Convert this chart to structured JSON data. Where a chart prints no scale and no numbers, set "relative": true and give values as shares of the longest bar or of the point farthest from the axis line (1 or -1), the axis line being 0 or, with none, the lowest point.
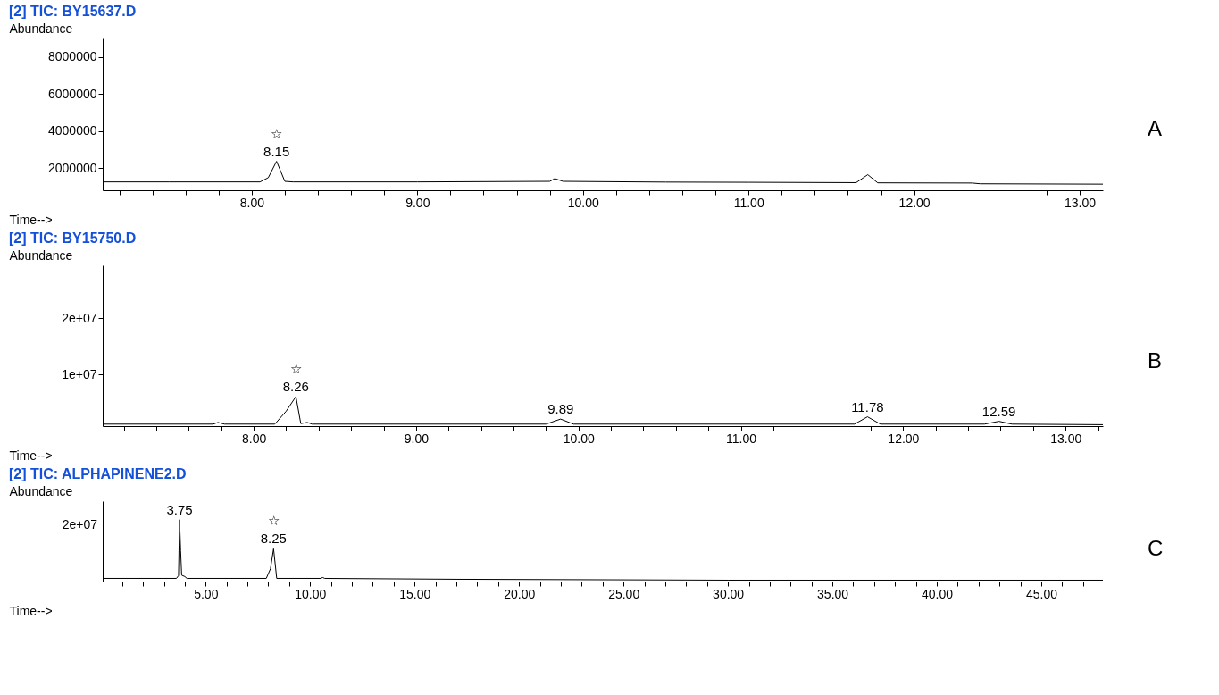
{
  "chart_data": [
    {
      "type": "line",
      "title": "[2] TIC: BY15637.D",
      "xlabel": "Time-->",
      "ylabel": "Abundance",
      "grid": false,
      "xlim": [
        7.1,
        13.14
      ],
      "xticks": [
        {
          "value": 7.2,
          "label": null
        },
        {
          "value": 7.4,
          "label": null
        },
        {
          "value": 7.6,
          "label": null
        },
        {
          "value": 7.8,
          "label": null
        },
        {
          "value": 8,
          "label": "8.00"
        },
        {
          "value": 8.2,
          "label": null
        },
        {
          "value": 8.4,
          "label": null
        },
        {
          "value": 8.6,
          "label": null
        },
        {
          "value": 8.8,
          "label": null
        },
        {
          "value": 9,
          "label": "9.00"
        },
        {
          "value": 9.2,
          "label": null
        },
        {
          "value": 9.4,
          "label": null
        },
        {
          "value": 9.6,
          "label": null
        },
        {
          "value": 9.8,
          "label": null
        },
        {
          "value": 10,
          "label": "10.00"
        },
        {
          "value": 10.2,
          "label": null
        },
        {
          "value": 10.4,
          "label": null
        },
        {
          "value": 10.6,
          "label": null
        },
        {
          "value": 10.8,
          "label": null
        },
        {
          "value": 11,
          "label": "11.00"
        },
        {
          "value": 11.2,
          "label": null
        },
        {
          "value": 11.4,
          "label": null
        },
        {
          "value": 11.6,
          "label": null
        },
        {
          "value": 11.8,
          "label": null
        },
        {
          "value": 12,
          "label": "12.00"
        },
        {
          "value": 12.2,
          "label": null
        },
        {
          "value": 12.4,
          "label": null
        },
        {
          "value": 12.6,
          "label": null
        },
        {
          "value": 12.8,
          "label": null
        },
        {
          "value": 13,
          "label": "13.00"
        }
      ],
      "ylim": [
        820000,
        9000000
      ],
      "yticks": [
        2000000,
        4000000,
        6000000,
        8000000
      ],
      "series": [
        {
          "color": "#000000",
          "x": [
            7.1,
            7.5,
            8.05,
            8.1,
            8.15,
            8.2,
            8.25,
            9.0,
            9.8,
            9.83,
            9.88,
            10.5,
            11.0,
            11.65,
            11.72,
            11.78,
            12.35,
            12.4,
            13.14
          ],
          "values": [
            1270000,
            1270000,
            1270000,
            1500000,
            2380000,
            1300000,
            1270000,
            1270000,
            1300000,
            1450000,
            1300000,
            1260000,
            1250000,
            1230000,
            1660000,
            1220000,
            1210000,
            1170000,
            1150000
          ]
        }
      ],
      "annotations": [
        {
          "text": "8.15",
          "x": 8.15,
          "y": 2380000
        },
        {
          "text": "☆",
          "x": 8.15,
          "y": 2380000
        },
        "A"
      ]
    },
    {
      "type": "line",
      "title": "[2] TIC: BY15750.D",
      "xlabel": "Time-->",
      "ylabel": "Abundance",
      "grid": false,
      "xlim": [
        7.07,
        13.23
      ],
      "xticks": [
        {
          "value": 7.2,
          "label": null
        },
        {
          "value": 7.4,
          "label": null
        },
        {
          "value": 7.6,
          "label": null
        },
        {
          "value": 7.8,
          "label": null
        },
        {
          "value": 8,
          "label": "8.00"
        },
        {
          "value": 8.2,
          "label": null
        },
        {
          "value": 8.4,
          "label": null
        },
        {
          "value": 8.6,
          "label": null
        },
        {
          "value": 8.8,
          "label": null
        },
        {
          "value": 9,
          "label": "9.00"
        },
        {
          "value": 9.2,
          "label": null
        },
        {
          "value": 9.4,
          "label": null
        },
        {
          "value": 9.6,
          "label": null
        },
        {
          "value": 9.8,
          "label": null
        },
        {
          "value": 10,
          "label": "10.00"
        },
        {
          "value": 10.2,
          "label": null
        },
        {
          "value": 10.4,
          "label": null
        },
        {
          "value": 10.6,
          "label": null
        },
        {
          "value": 10.8,
          "label": null
        },
        {
          "value": 11,
          "label": "11.00"
        },
        {
          "value": 11.2,
          "label": null
        },
        {
          "value": 11.4,
          "label": null
        },
        {
          "value": 11.6,
          "label": null
        },
        {
          "value": 11.8,
          "label": null
        },
        {
          "value": 12,
          "label": "12.00"
        },
        {
          "value": 12.2,
          "label": null
        },
        {
          "value": 12.4,
          "label": null
        },
        {
          "value": 12.6,
          "label": null
        },
        {
          "value": 12.8,
          "label": null
        },
        {
          "value": 13,
          "label": "13.00"
        },
        {
          "value": 13.2,
          "label": null
        }
      ],
      "ylim": [
        850000,
        29400000
      ],
      "yticks": [
        {
          "value": 10000000,
          "label": "1e+07"
        },
        {
          "value": 20000000,
          "label": "2e+07"
        }
      ],
      "series": [
        {
          "color": "#000000",
          "x": [
            7.07,
            7.75,
            7.78,
            7.82,
            8.13,
            8.2,
            8.26,
            8.29,
            8.33,
            8.36,
            9.8,
            9.89,
            9.97,
            11.7,
            11.78,
            11.86,
            12.5,
            12.59,
            12.67,
            13.23
          ],
          "values": [
            1200000,
            1200000,
            1500000,
            1200000,
            1200000,
            3500000,
            6100000,
            1300000,
            1500000,
            1200000,
            1200000,
            2100000,
            1200000,
            1200000,
            2500000,
            1200000,
            1200000,
            1700000,
            1200000,
            1100000
          ]
        }
      ],
      "annotations": [
        {
          "text": "8.26",
          "x": 8.26,
          "y": 6100000
        },
        {
          "text": "☆",
          "x": 8.26,
          "y": 6100000
        },
        {
          "text": "9.89",
          "x": 9.89,
          "y": 2100000
        },
        {
          "text": "11.78",
          "x": 11.78,
          "y": 2500000
        },
        {
          "text": "12.59",
          "x": 12.59,
          "y": 1700000
        },
        "B"
      ]
    },
    {
      "type": "line",
      "title": "[2] TIC: ALPHAPINENE2.D",
      "xlabel": "Time-->",
      "ylabel": "Abundance",
      "grid": false,
      "relative": true,
      "xlim": [
        0.07,
        47.95
      ],
      "xticks": [
        {
          "value": 1,
          "label": null
        },
        {
          "value": 2,
          "label": null
        },
        {
          "value": 3,
          "label": null
        },
        {
          "value": 4,
          "label": null
        },
        {
          "value": 5,
          "label": "5.00"
        },
        {
          "value": 6,
          "label": null
        },
        {
          "value": 7,
          "label": null
        },
        {
          "value": 8,
          "label": null
        },
        {
          "value": 9,
          "label": null
        },
        {
          "value": 10,
          "label": "10.00"
        },
        {
          "value": 11,
          "label": null
        },
        {
          "value": 12,
          "label": null
        },
        {
          "value": 13,
          "label": null
        },
        {
          "value": 14,
          "label": null
        },
        {
          "value": 15,
          "label": "15.00"
        },
        {
          "value": 16,
          "label": null
        },
        {
          "value": 17,
          "label": null
        },
        {
          "value": 18,
          "label": null
        },
        {
          "value": 19,
          "label": null
        },
        {
          "value": 20,
          "label": "20.00"
        },
        {
          "value": 21,
          "label": null
        },
        {
          "value": 22,
          "label": null
        },
        {
          "value": 23,
          "label": null
        },
        {
          "value": 24,
          "label": null
        },
        {
          "value": 25,
          "label": "25.00"
        },
        {
          "value": 26,
          "label": null
        },
        {
          "value": 27,
          "label": null
        },
        {
          "value": 28,
          "label": null
        },
        {
          "value": 29,
          "label": null
        },
        {
          "value": 30,
          "label": "30.00"
        },
        {
          "value": 31,
          "label": null
        },
        {
          "value": 32,
          "label": null
        },
        {
          "value": 33,
          "label": null
        },
        {
          "value": 34,
          "label": null
        },
        {
          "value": 35,
          "label": "35.00"
        },
        {
          "value": 36,
          "label": null
        },
        {
          "value": 37,
          "label": null
        },
        {
          "value": 38,
          "label": null
        },
        {
          "value": 39,
          "label": null
        },
        {
          "value": 40,
          "label": "40.00"
        },
        {
          "value": 41,
          "label": null
        },
        {
          "value": 42,
          "label": null
        },
        {
          "value": 43,
          "label": null
        },
        {
          "value": 44,
          "label": null
        },
        {
          "value": 45,
          "label": "45.00"
        },
        {
          "value": 46,
          "label": null
        },
        {
          "value": 47,
          "label": null
        }
      ],
      "series": [
        {
          "color": "#000000",
          "x": [
            0.07,
            3.6,
            3.7,
            3.75,
            3.8,
            3.85,
            4.0,
            4.1,
            7.9,
            8.1,
            8.25,
            8.4,
            10.5,
            10.6,
            10.7,
            17.0,
            30.0,
            47.95
          ],
          "values": [
            0.051,
            0.051,
            0.096,
            1,
            0.5,
            0.103,
            0.081,
            0.051,
            0.051,
            0.206,
            0.529,
            0.051,
            0.051,
            0.066,
            0.051,
            0.037,
            0.022,
            0.022
          ]
        }
      ],
      "annotations": [
        {
          "text": "3.75",
          "x": 3.75,
          "y": 1
        },
        {
          "text": "8.25",
          "x": 8.25,
          "y": 0.529
        },
        {
          "text": "☆",
          "x": 8.25,
          "y": 0.529
        },
        "2e+07",
        "C"
      ]
    }
  ]
}
